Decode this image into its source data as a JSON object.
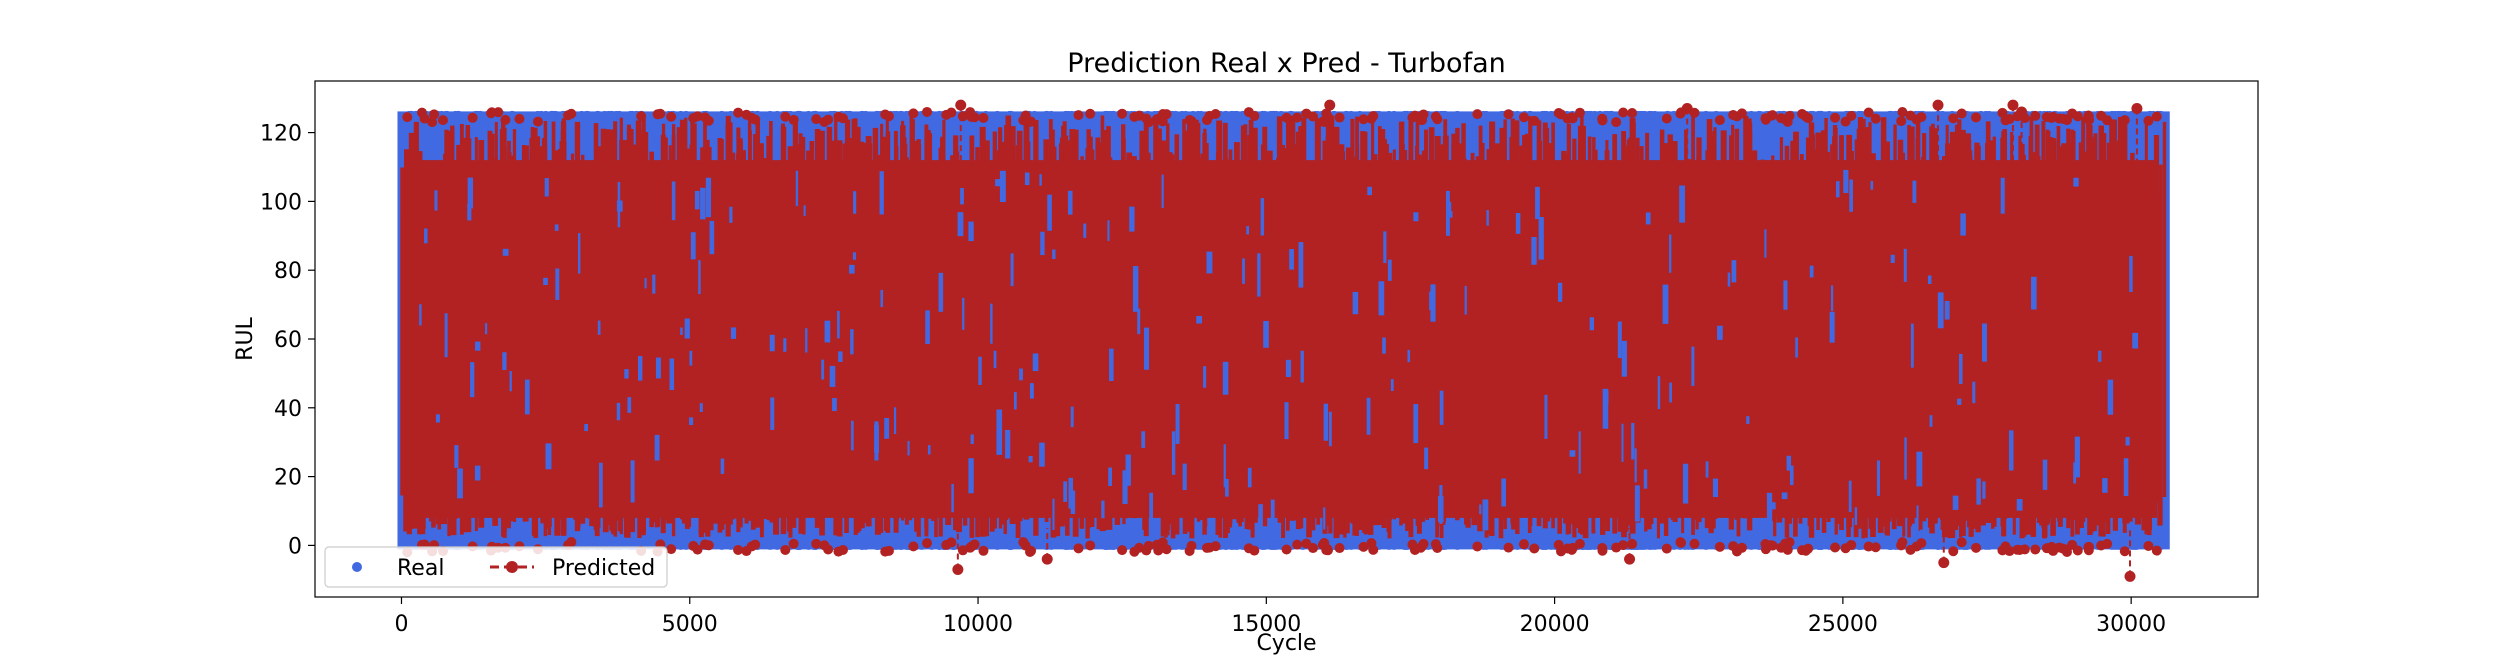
{
  "chart_data": {
    "type": "scatter",
    "title": "Prediction Real x Pred - Turbofan",
    "xlabel": "Cycle",
    "ylabel": "RUL",
    "xlim": [
      -1500,
      32200
    ],
    "ylim": [
      -15,
      135
    ],
    "x_ticks": [
      0,
      5000,
      10000,
      15000,
      20000,
      25000,
      30000
    ],
    "y_ticks": [
      0,
      20,
      40,
      60,
      80,
      100,
      120
    ],
    "x_range": [
      0,
      30600
    ],
    "legend_position": "lower-left",
    "legend_columns": 2,
    "grid": false,
    "series": [
      {
        "name": "Real",
        "color": "#4169e1",
        "marker": "circle",
        "line": "none",
        "min": 0,
        "max": 125
      },
      {
        "name": "Predicted",
        "color": "#b22222",
        "marker": "circle",
        "line": "dashed",
        "min": -9,
        "max": 128,
        "extreme_points": [
          [
            9650,
            -7
          ],
          [
            29980,
            -9
          ],
          [
            11200,
            -4
          ],
          [
            21300,
            -4
          ],
          [
            26750,
            -5
          ],
          [
            9700,
            128
          ],
          [
            16100,
            128
          ],
          [
            27950,
            128
          ],
          [
            22300,
            127
          ],
          [
            26650,
            128
          ],
          [
            28100,
            126
          ],
          [
            30100,
            127
          ]
        ]
      }
    ]
  }
}
